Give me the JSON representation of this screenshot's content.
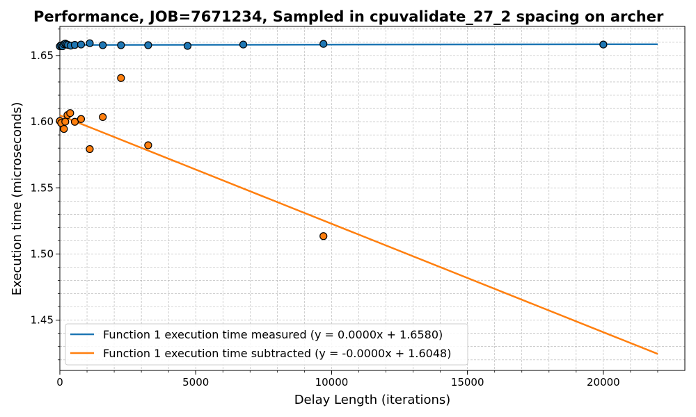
{
  "chart_data": {
    "type": "scatter",
    "title": "Performance, JOB=7671234, Sampled in cpuvalidate_27_2 spacing on archer",
    "xlabel": "Delay Length (iterations)",
    "ylabel": "Execution time (microseconds)",
    "xlim": [
      0,
      23000
    ],
    "ylim": [
      1.412,
      1.672
    ],
    "xticks": [
      "0",
      "5000",
      "10000",
      "15000",
      "20000"
    ],
    "yticks": [
      "1.45",
      "1.50",
      "1.55",
      "1.60",
      "1.65"
    ],
    "grid": true,
    "legend_position": "lower-left",
    "series": [
      {
        "name": "Function 1 execution time measured (y = 0.0000x + 1.6580)",
        "color": "#1f77b4",
        "points": [
          {
            "x": 0,
            "y": 1.657
          },
          {
            "x": 50,
            "y": 1.6575
          },
          {
            "x": 100,
            "y": 1.657
          },
          {
            "x": 150,
            "y": 1.6585
          },
          {
            "x": 200,
            "y": 1.659
          },
          {
            "x": 250,
            "y": 1.6585
          },
          {
            "x": 300,
            "y": 1.658
          },
          {
            "x": 400,
            "y": 1.6575
          },
          {
            "x": 550,
            "y": 1.658
          },
          {
            "x": 780,
            "y": 1.6583
          },
          {
            "x": 1100,
            "y": 1.6593
          },
          {
            "x": 1580,
            "y": 1.6578
          },
          {
            "x": 2250,
            "y": 1.6578
          },
          {
            "x": 3250,
            "y": 1.6578
          },
          {
            "x": 4700,
            "y": 1.6573
          },
          {
            "x": 6750,
            "y": 1.6583
          },
          {
            "x": 9700,
            "y": 1.6588
          },
          {
            "x": 20000,
            "y": 1.6583
          }
        ],
        "fit": {
          "x": [
            0,
            22000
          ],
          "y": [
            1.658,
            1.6585
          ]
        }
      },
      {
        "name": "Function 1 execution time subtracted (y = -0.0000x + 1.6048)",
        "color": "#ff7f0e",
        "points": [
          {
            "x": 0,
            "y": 1.6005
          },
          {
            "x": 50,
            "y": 1.599
          },
          {
            "x": 150,
            "y": 1.5945
          },
          {
            "x": 200,
            "y": 1.6
          },
          {
            "x": 280,
            "y": 1.605
          },
          {
            "x": 380,
            "y": 1.6065
          },
          {
            "x": 550,
            "y": 1.5999
          },
          {
            "x": 780,
            "y": 1.602
          },
          {
            "x": 1100,
            "y": 1.5793
          },
          {
            "x": 1580,
            "y": 1.6035
          },
          {
            "x": 2250,
            "y": 1.633
          },
          {
            "x": 3250,
            "y": 1.5822
          },
          {
            "x": 9700,
            "y": 1.5135
          }
        ],
        "fit": {
          "x": [
            0,
            22000
          ],
          "y": [
            1.6048,
            1.4245
          ]
        }
      }
    ]
  }
}
